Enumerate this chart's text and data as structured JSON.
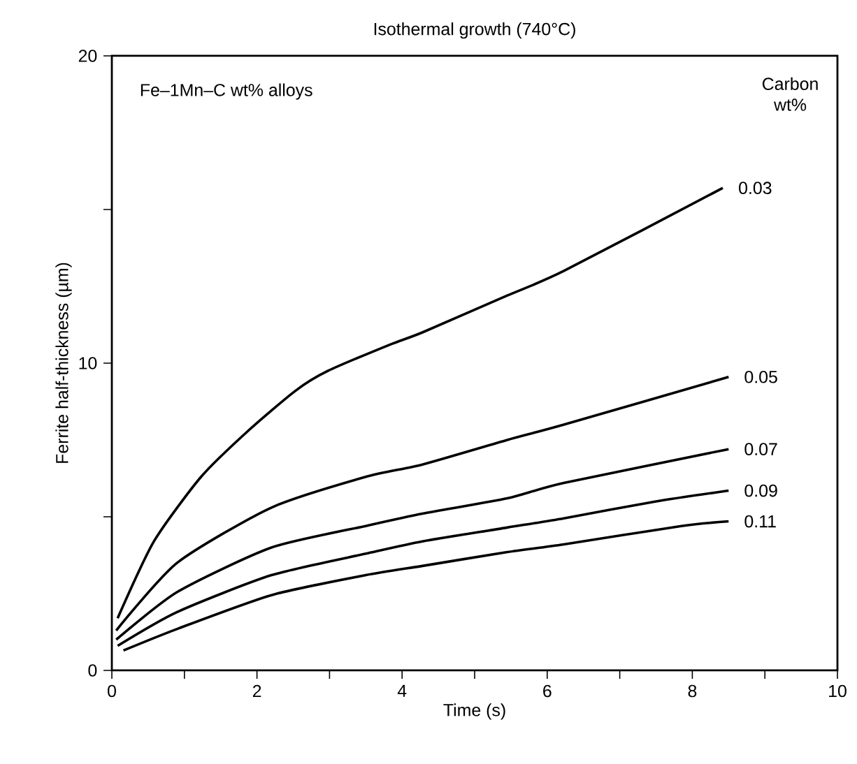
{
  "chart_data": {
    "type": "line",
    "title": "Isothermal growth (740°C)",
    "xlabel": "Time (s)",
    "ylabel": "Ferrite half-thickness (µm)",
    "legend_title": "Carbon wt%",
    "annotations": [
      "Fe–1Mn–C wt% alloys"
    ],
    "xlim": [
      0,
      10
    ],
    "ylim": [
      0,
      20
    ],
    "xticks": [
      0,
      {
        "value": 1,
        "label": null
      },
      2,
      {
        "value": 3,
        "label": null
      },
      4,
      {
        "value": 5,
        "label": null
      },
      6,
      {
        "value": 7,
        "label": null
      },
      8,
      {
        "value": 9,
        "label": null
      },
      10
    ],
    "yticks": [
      0,
      {
        "value": 5,
        "label": null
      },
      10,
      {
        "value": 15,
        "label": null
      },
      20
    ],
    "grid": false,
    "legend": false,
    "marker": "none",
    "line_style": "solid",
    "series": [
      {
        "name": "0.03",
        "color": "#000000",
        "x": [
          0.08,
          0.58,
          1.23,
          1.88,
          2.53,
          2.98,
          3.83,
          4.28,
          5.45,
          6.23,
          8.42
        ],
        "values": [
          1.7,
          4.2,
          6.3,
          7.8,
          9.1,
          9.75,
          10.6,
          11.0,
          12.2,
          13.0,
          15.7
        ]
      },
      {
        "name": "0.05",
        "color": "#000000",
        "x": [
          0.06,
          0.9,
          2.2,
          3.5,
          4.28,
          5.45,
          6.23,
          8.5
        ],
        "values": [
          1.3,
          3.5,
          5.3,
          6.3,
          6.7,
          7.5,
          8.0,
          9.55
        ]
      },
      {
        "name": "0.07",
        "color": "#000000",
        "x": [
          0.06,
          0.9,
          2.2,
          3.5,
          4.28,
          5.45,
          6.23,
          8.5
        ],
        "values": [
          1.0,
          2.55,
          4.0,
          4.7,
          5.1,
          5.6,
          6.1,
          7.2
        ]
      },
      {
        "name": "0.09",
        "color": "#000000",
        "x": [
          0.08,
          0.9,
          2.2,
          3.5,
          4.28,
          5.45,
          6.23,
          7.5,
          8.5
        ],
        "values": [
          0.8,
          1.9,
          3.1,
          3.8,
          4.2,
          4.65,
          4.95,
          5.5,
          5.85
        ]
      },
      {
        "name": "0.11",
        "color": "#000000",
        "x": [
          0.16,
          0.9,
          2.2,
          3.5,
          4.28,
          5.45,
          6.23,
          7.85,
          8.5
        ],
        "values": [
          0.65,
          1.35,
          2.45,
          3.1,
          3.4,
          3.85,
          4.1,
          4.7,
          4.85
        ]
      }
    ]
  }
}
